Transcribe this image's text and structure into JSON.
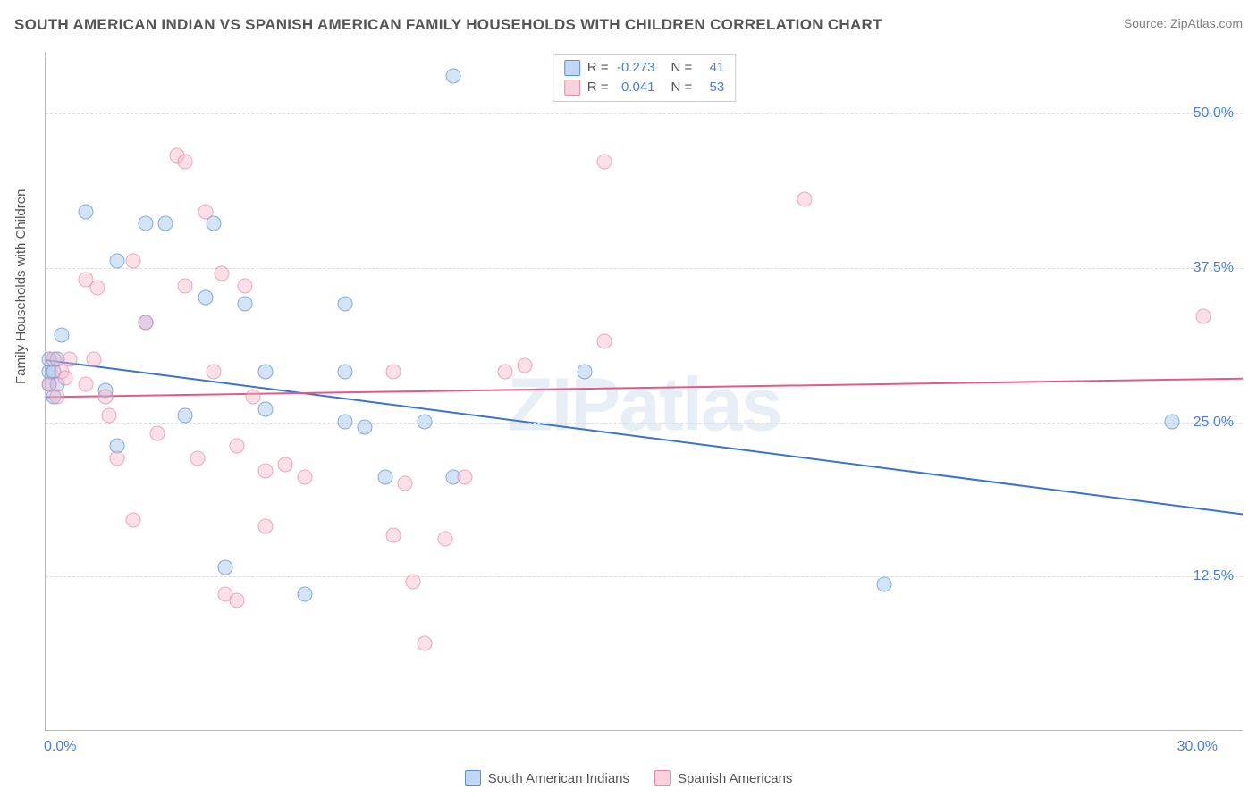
{
  "title": "SOUTH AMERICAN INDIAN VS SPANISH AMERICAN FAMILY HOUSEHOLDS WITH CHILDREN CORRELATION CHART",
  "source": "Source: ZipAtlas.com",
  "watermark": "ZIPatlas",
  "y_axis_title": "Family Households with Children",
  "chart": {
    "type": "scatter",
    "xlim": [
      0,
      30
    ],
    "ylim": [
      0,
      55
    ],
    "x_ticks": {
      "min_label": "0.0%",
      "max_label": "30.0%"
    },
    "y_gridlines": [
      12.5,
      25.0,
      37.5,
      50.0
    ],
    "y_tick_labels": [
      "12.5%",
      "25.0%",
      "37.5%",
      "50.0%"
    ],
    "grid_color": "#dddddd",
    "axis_color": "#bbbbbb",
    "background_color": "#ffffff",
    "marker_radius": 8.5,
    "series": [
      {
        "name": "South American Indians",
        "color_fill": "rgba(150,190,235,0.55)",
        "color_stroke": "#5a8fd0",
        "class": "blue",
        "R": "-0.273",
        "N": "41",
        "trend": {
          "y_at_x0": 30.0,
          "y_at_x30": 17.5,
          "color": "#3b74c8",
          "width": 2
        },
        "points": [
          [
            0.1,
            28
          ],
          [
            0.1,
            29
          ],
          [
            0.1,
            30
          ],
          [
            0.2,
            27
          ],
          [
            0.2,
            29
          ],
          [
            0.3,
            28
          ],
          [
            0.3,
            30
          ],
          [
            0.4,
            32
          ],
          [
            1.0,
            42
          ],
          [
            1.5,
            27.5
          ],
          [
            1.8,
            38
          ],
          [
            1.8,
            23
          ],
          [
            2.5,
            41
          ],
          [
            2.5,
            33
          ],
          [
            3.0,
            41
          ],
          [
            3.5,
            25.5
          ],
          [
            4.0,
            35
          ],
          [
            4.2,
            41
          ],
          [
            4.5,
            13.2
          ],
          [
            5.0,
            34.5
          ],
          [
            5.5,
            29
          ],
          [
            5.5,
            26
          ],
          [
            6.5,
            11.0
          ],
          [
            7.5,
            29
          ],
          [
            7.5,
            34.5
          ],
          [
            7.5,
            25
          ],
          [
            8.0,
            24.5
          ],
          [
            8.5,
            20.5
          ],
          [
            9.5,
            25
          ],
          [
            10.2,
            53
          ],
          [
            10.2,
            20.5
          ],
          [
            13.5,
            29
          ],
          [
            21.0,
            11.8
          ],
          [
            28.2,
            25
          ]
        ]
      },
      {
        "name": "Spanish Americans",
        "color_fill": "rgba(245,180,200,0.55)",
        "color_stroke": "#e68aa5",
        "class": "pink",
        "R": "0.041",
        "N": "53",
        "trend": {
          "y_at_x0": 27.0,
          "y_at_x30": 28.5,
          "color": "#e05a8a",
          "width": 2
        },
        "points": [
          [
            0.1,
            28
          ],
          [
            0.2,
            30
          ],
          [
            0.3,
            27
          ],
          [
            0.4,
            29
          ],
          [
            0.5,
            28.5
          ],
          [
            0.6,
            30
          ],
          [
            1.0,
            28
          ],
          [
            1.0,
            36.5
          ],
          [
            1.2,
            30
          ],
          [
            1.3,
            35.8
          ],
          [
            1.5,
            27
          ],
          [
            1.6,
            25.5
          ],
          [
            1.8,
            22
          ],
          [
            2.2,
            38
          ],
          [
            2.2,
            17
          ],
          [
            2.5,
            33
          ],
          [
            2.8,
            24
          ],
          [
            3.3,
            46.5
          ],
          [
            3.5,
            46
          ],
          [
            3.5,
            36
          ],
          [
            3.8,
            22
          ],
          [
            4.0,
            42
          ],
          [
            4.2,
            29
          ],
          [
            4.4,
            37
          ],
          [
            4.5,
            11.0
          ],
          [
            4.8,
            23
          ],
          [
            4.8,
            10.5
          ],
          [
            5.0,
            36
          ],
          [
            5.2,
            27
          ],
          [
            5.5,
            21
          ],
          [
            5.5,
            16.5
          ],
          [
            6.0,
            21.5
          ],
          [
            6.5,
            20.5
          ],
          [
            8.7,
            29
          ],
          [
            8.7,
            15.8
          ],
          [
            9.0,
            20
          ],
          [
            9.2,
            12.0
          ],
          [
            9.5,
            7.0
          ],
          [
            10.0,
            15.5
          ],
          [
            10.5,
            20.5
          ],
          [
            11.5,
            29
          ],
          [
            12.0,
            29.5
          ],
          [
            14.0,
            46
          ],
          [
            14.0,
            31.5
          ],
          [
            19.0,
            43
          ],
          [
            29.0,
            33.5
          ]
        ]
      }
    ]
  },
  "stats_box": {
    "label_R": "R =",
    "label_N": "N ="
  },
  "legend": {
    "series1": "South American Indians",
    "series2": "Spanish Americans"
  }
}
